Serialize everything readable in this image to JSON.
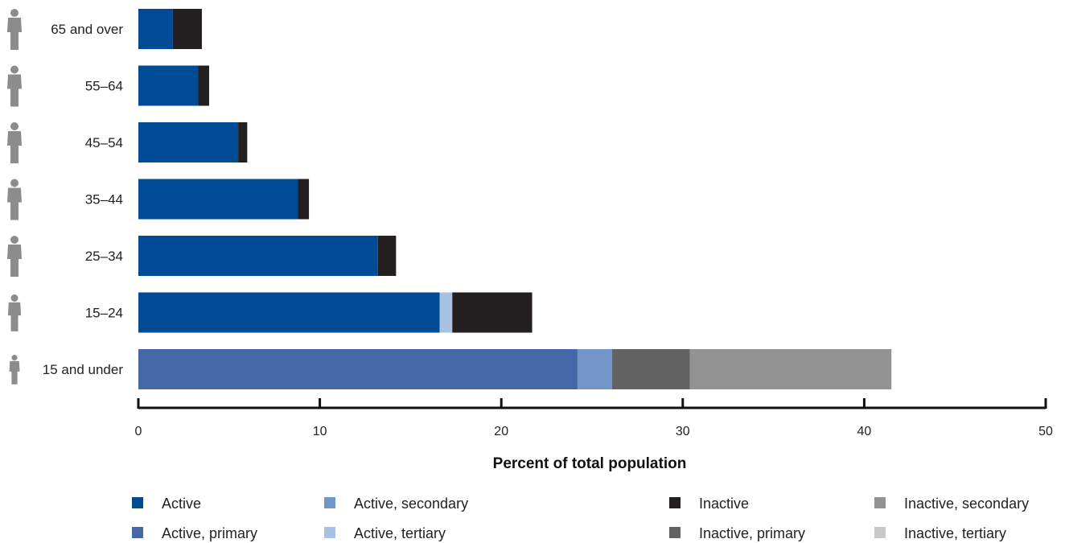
{
  "chart_data": {
    "type": "bar",
    "orientation": "horizontal",
    "stacked": true,
    "xlabel": "Percent of total population",
    "xlim": [
      0,
      50
    ],
    "xticks": [
      0,
      10,
      20,
      30,
      40,
      50
    ],
    "categories": [
      "65 and over",
      "55–64",
      "45–54",
      "35–44",
      "25–34",
      "15–24",
      "15 and under"
    ],
    "series": [
      {
        "name": "Active",
        "color": "#004b96",
        "values": [
          1.9,
          3.3,
          5.5,
          8.8,
          13.2,
          16.6,
          0
        ]
      },
      {
        "name": "Active, primary",
        "color": "#4567a8",
        "values": [
          0,
          0,
          0,
          0,
          0,
          0,
          24.2
        ]
      },
      {
        "name": "Active, secondary",
        "color": "#7395c8",
        "values": [
          0,
          0,
          0,
          0,
          0,
          0,
          1.9
        ]
      },
      {
        "name": "Active, tertiary",
        "color": "#a9c2e1",
        "values": [
          0,
          0,
          0,
          0,
          0,
          0.7,
          0
        ]
      },
      {
        "name": "Inactive",
        "color": "#231f20",
        "values": [
          1.6,
          0.6,
          0.5,
          0.6,
          1.0,
          4.4,
          0
        ]
      },
      {
        "name": "Inactive, primary",
        "color": "#636363",
        "values": [
          0,
          0,
          0,
          0,
          0,
          0,
          4.3
        ]
      },
      {
        "name": "Inactive, secondary",
        "color": "#939393",
        "values": [
          0,
          0,
          0,
          0,
          0,
          0,
          11.1
        ]
      },
      {
        "name": "Inactive, tertiary",
        "color": "#c8c8c8",
        "values": [
          0,
          0,
          0,
          0,
          0,
          0,
          0
        ]
      }
    ],
    "legend": {
      "placement": "bottom",
      "items": [
        "Active",
        "Active, secondary",
        "Inactive",
        "Inactive, secondary",
        "Active, primary",
        "Active, tertiary",
        "Inactive, primary",
        "Inactive, tertiary"
      ]
    },
    "icons": [
      "elder-person-icon",
      "person-icon",
      "person-icon",
      "person-icon",
      "person-icon",
      "youth-person-icon",
      "child-person-icon"
    ],
    "icon_color": "#8c8c8c",
    "grid": false
  }
}
